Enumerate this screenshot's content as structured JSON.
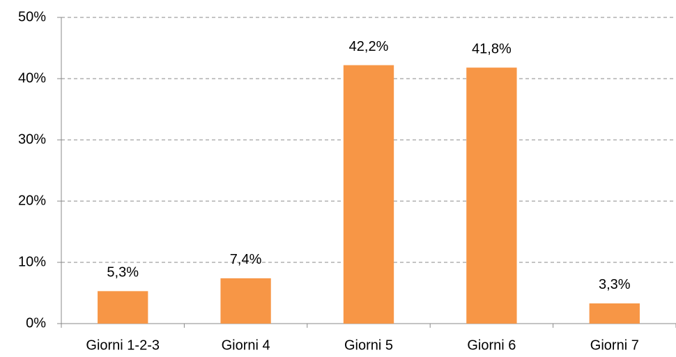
{
  "chart_data": {
    "type": "bar",
    "categories": [
      "Giorni 1-2-3",
      "Giorni 4",
      "Giorni 5",
      "Giorni 6",
      "Giorni 7"
    ],
    "values": [
      5.3,
      7.4,
      42.2,
      41.8,
      3.3
    ],
    "value_labels": [
      "5,3%",
      "7,4%",
      "42,2%",
      "41,8%",
      "3,3%"
    ],
    "color": "#f79646",
    "ylim": [
      0,
      50
    ],
    "yticks": [
      {
        "value": 0,
        "label": "0%"
      },
      {
        "value": 10,
        "label": "10%"
      },
      {
        "value": 20,
        "label": "20%"
      },
      {
        "value": 30,
        "label": "30%"
      },
      {
        "value": 40,
        "label": "40%"
      },
      {
        "value": 50,
        "label": "50%"
      }
    ],
    "grid": true
  }
}
